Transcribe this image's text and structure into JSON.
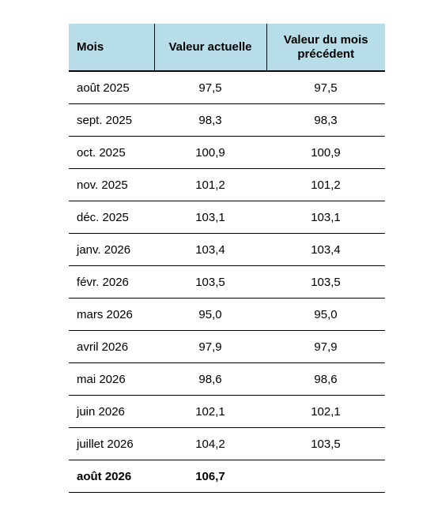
{
  "table": {
    "header": [
      "Mois",
      "Valeur actuelle",
      "Valeur du mois précédent"
    ],
    "rows": [
      [
        "août 2025",
        "97,5",
        "97,5"
      ],
      [
        "sept. 2025",
        "98,3",
        "98,3"
      ],
      [
        "oct. 2025",
        "100,9",
        "100,9"
      ],
      [
        "nov. 2025",
        "101,2",
        "101,2"
      ],
      [
        "déc. 2025",
        "103,1",
        "103,1"
      ],
      [
        "janv. 2026",
        "103,4",
        "103,4"
      ],
      [
        "févr. 2026",
        "103,5",
        "103,5"
      ],
      [
        "mars 2026",
        "95,0",
        "95,0"
      ],
      [
        "avril 2026",
        "97,9",
        "97,9"
      ],
      [
        "mai 2026",
        "98,6",
        "98,6"
      ],
      [
        "juin 2026",
        "102,1",
        "102,1"
      ],
      [
        "juillet 2026",
        "104,2",
        "103,5"
      ],
      [
        "août 2026",
        "106,7"
      ]
    ]
  }
}
